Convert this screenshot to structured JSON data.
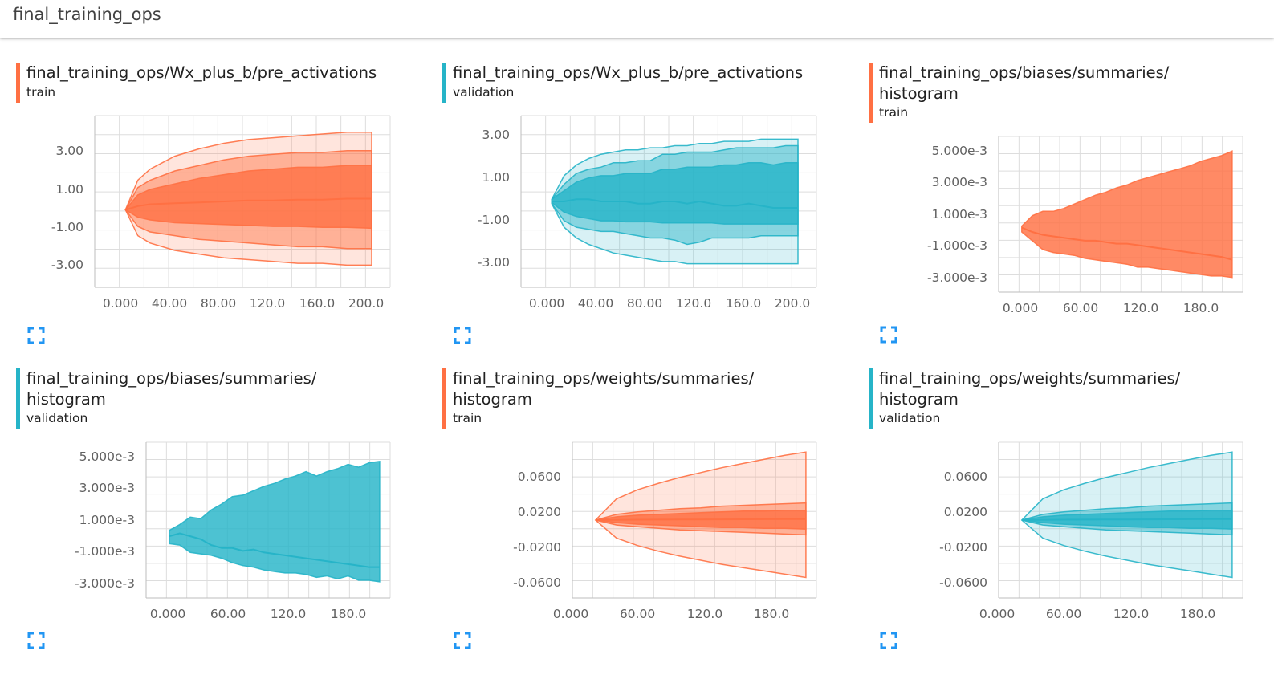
{
  "header": {
    "title": "final_training_ops"
  },
  "charts": [
    {
      "title": "final_training_ops/Wx_plus_b/pre_activations",
      "run": "train",
      "color": "#ff7043",
      "yticks": [
        "3.00",
        "1.00",
        "-1.00",
        "-3.00"
      ],
      "xticks": [
        "0.000",
        "40.00",
        "80.00",
        "120.0",
        "160.0",
        "200.0"
      ],
      "chart_data": {
        "type": "area",
        "description_kind": "histogram-distribution",
        "xlim": [
          -25,
          215
        ],
        "ylim": [
          -4.2,
          5.1
        ],
        "x": [
          0,
          10,
          20,
          40,
          60,
          80,
          100,
          120,
          140,
          160,
          180,
          200
        ],
        "bands": [
          {
            "upper": [
              0,
              1.6,
              2.2,
              2.9,
              3.3,
              3.6,
              3.8,
              3.9,
              4.0,
              4.1,
              4.2,
              4.2
            ],
            "lower": [
              0,
              -1.4,
              -1.8,
              -2.2,
              -2.4,
              -2.6,
              -2.7,
              -2.8,
              -2.9,
              -2.9,
              -3.0,
              -3.0
            ]
          },
          {
            "upper": [
              0,
              1.2,
              1.6,
              2.1,
              2.4,
              2.7,
              2.9,
              3.0,
              3.1,
              3.1,
              3.2,
              3.2
            ],
            "lower": [
              0,
              -0.9,
              -1.2,
              -1.4,
              -1.6,
              -1.7,
              -1.8,
              -1.9,
              -2.0,
              -2.0,
              -2.1,
              -2.1
            ]
          },
          {
            "upper": [
              0,
              0.8,
              1.1,
              1.4,
              1.7,
              1.9,
              2.1,
              2.2,
              2.3,
              2.3,
              2.4,
              2.4
            ],
            "lower": [
              0,
              -0.4,
              -0.55,
              -0.7,
              -0.75,
              -0.8,
              -0.85,
              -0.9,
              -0.9,
              -0.95,
              -0.95,
              -1.0
            ]
          }
        ],
        "median": [
          0,
          0.2,
          0.3,
          0.35,
          0.4,
          0.45,
          0.5,
          0.5,
          0.55,
          0.55,
          0.6,
          0.6
        ]
      }
    },
    {
      "title": "final_training_ops/Wx_plus_b/pre_activations",
      "run": "validation",
      "color": "#26b4c8",
      "yticks": [
        "3.00",
        "1.00",
        "-1.00",
        "-3.00"
      ],
      "xticks": [
        "0.000",
        "40.00",
        "80.00",
        "120.0",
        "160.0",
        "200.0"
      ],
      "chart_data": {
        "type": "area",
        "description_kind": "histogram-distribution",
        "xlim": [
          -25,
          215
        ],
        "ylim": [
          -4.0,
          4.0
        ],
        "x": [
          0,
          10,
          20,
          30,
          40,
          50,
          60,
          70,
          80,
          90,
          100,
          110,
          120,
          130,
          140,
          150,
          160,
          170,
          180,
          190,
          200
        ],
        "bands": [
          {
            "upper": [
              0.1,
              1.2,
              1.7,
              2.0,
              2.2,
              2.3,
              2.4,
              2.4,
              2.5,
              2.5,
              2.6,
              2.6,
              2.7,
              2.7,
              2.8,
              2.8,
              2.8,
              2.9,
              2.9,
              2.9,
              2.9
            ],
            "lower": [
              -0.1,
              -1.2,
              -1.7,
              -2.0,
              -2.2,
              -2.4,
              -2.5,
              -2.6,
              -2.7,
              -2.8,
              -2.8,
              -2.9,
              -2.9,
              -2.9,
              -2.9,
              -2.9,
              -2.9,
              -2.9,
              -2.9,
              -2.9,
              -2.9
            ]
          },
          {
            "upper": [
              0.1,
              0.8,
              1.3,
              1.5,
              1.6,
              1.8,
              1.8,
              1.9,
              1.9,
              2.2,
              2.2,
              2.3,
              2.3,
              2.3,
              2.4,
              2.5,
              2.5,
              2.5,
              2.5,
              2.6,
              2.6
            ],
            "lower": [
              -0.1,
              -0.9,
              -1.2,
              -1.3,
              -1.4,
              -1.4,
              -1.5,
              -1.6,
              -1.7,
              -1.7,
              -1.8,
              -2.0,
              -1.9,
              -1.7,
              -1.7,
              -1.7,
              -1.7,
              -1.6,
              -1.6,
              -1.6,
              -1.6
            ]
          },
          {
            "upper": [
              0.1,
              0.5,
              0.9,
              1.1,
              1.2,
              1.2,
              1.3,
              1.3,
              1.3,
              1.5,
              1.5,
              1.6,
              1.6,
              1.6,
              1.7,
              1.7,
              1.8,
              1.8,
              1.7,
              1.8,
              1.8
            ],
            "lower": [
              -0.05,
              -0.5,
              -0.7,
              -0.8,
              -0.9,
              -0.9,
              -0.95,
              -0.95,
              -0.95,
              -1.0,
              -1.0,
              -1.0,
              -1.0,
              -1.0,
              -1.05,
              -1.05,
              -1.05,
              -1.05,
              -1.05,
              -1.05,
              -1.05
            ]
          }
        ],
        "median": [
          0,
          0.0,
          0.1,
          0.1,
          0.0,
          0.0,
          0.0,
          -0.1,
          -0.1,
          0.0,
          0.0,
          -0.1,
          0.0,
          -0.1,
          -0.2,
          -0.2,
          -0.1,
          -0.2,
          -0.3,
          -0.3,
          -0.3
        ]
      }
    },
    {
      "title": "final_training_ops/biases/summaries/\nhistogram",
      "run": "train",
      "color": "#ff7043",
      "yticks": [
        "5.000e-3",
        "3.000e-3",
        "1.000e-3",
        "-1.000e-3",
        "-3.000e-3"
      ],
      "xticks": [
        "0.000",
        "60.00",
        "120.0",
        "180.0"
      ],
      "chart_data": {
        "type": "area",
        "description_kind": "histogram-distribution",
        "xlim": [
          -22,
          210
        ],
        "ylim": [
          -0.0043,
          0.0063
        ],
        "x": [
          0,
          10,
          20,
          30,
          40,
          50,
          60,
          70,
          80,
          90,
          100,
          110,
          120,
          130,
          140,
          150,
          160,
          170,
          180,
          190,
          200
        ],
        "bands": [
          {
            "upper": [
              0.0002,
              0.0009,
              0.0012,
              0.0012,
              0.0014,
              0.0017,
              0.002,
              0.0023,
              0.0025,
              0.0028,
              0.003,
              0.0033,
              0.0035,
              0.0037,
              0.0039,
              0.0041,
              0.0043,
              0.0046,
              0.0048,
              0.005,
              0.0053
            ],
            "lower": [
              -0.0002,
              -0.0008,
              -0.0014,
              -0.0016,
              -0.0017,
              -0.0018,
              -0.002,
              -0.0021,
              -0.0022,
              -0.0023,
              -0.0024,
              -0.0026,
              -0.0026,
              -0.0027,
              -0.0028,
              -0.0029,
              -0.003,
              -0.0031,
              -0.0032,
              -0.0032,
              -0.0033
            ]
          }
        ],
        "median": [
          0.0001,
          -0.0002,
          -0.0004,
          -0.0005,
          -0.0006,
          -0.0007,
          -0.0008,
          -0.0008,
          -0.0009,
          -0.001,
          -0.001,
          -0.0011,
          -0.0012,
          -0.0013,
          -0.0014,
          -0.0015,
          -0.0016,
          -0.0017,
          -0.0018,
          -0.0019,
          -0.0021
        ]
      }
    },
    {
      "title": "final_training_ops/biases/summaries/\nhistogram",
      "run": "validation",
      "color": "#26b4c8",
      "yticks": [
        "5.000e-3",
        "3.000e-3",
        "1.000e-3",
        "-1.000e-3",
        "-3.000e-3"
      ],
      "xticks": [
        "0.000",
        "60.00",
        "120.0",
        "180.0"
      ],
      "chart_data": {
        "type": "area",
        "description_kind": "histogram-distribution",
        "xlim": [
          -22,
          210
        ],
        "ylim": [
          -0.0043,
          0.0063
        ],
        "x": [
          0,
          10,
          20,
          30,
          40,
          50,
          60,
          70,
          80,
          90,
          100,
          110,
          120,
          130,
          140,
          150,
          160,
          170,
          180,
          190,
          200
        ],
        "bands": [
          {
            "upper": [
              0.0003,
              0.0007,
              0.0012,
              0.0011,
              0.0017,
              0.0021,
              0.0026,
              0.0027,
              0.003,
              0.0033,
              0.0035,
              0.0038,
              0.004,
              0.0043,
              0.004,
              0.0043,
              0.0045,
              0.0048,
              0.0046,
              0.0049,
              0.005
            ],
            "lower": [
              -0.0006,
              -0.0007,
              -0.0012,
              -0.0013,
              -0.0014,
              -0.0016,
              -0.0019,
              -0.0021,
              -0.0022,
              -0.0024,
              -0.0025,
              -0.0026,
              -0.0026,
              -0.0027,
              -0.0029,
              -0.0028,
              -0.003,
              -0.0028,
              -0.0031,
              -0.0031,
              -0.0032
            ]
          }
        ],
        "median": [
          -0.0001,
          0.0001,
          -0.0001,
          -0.0003,
          -0.0007,
          -0.0009,
          -0.0009,
          -0.0011,
          -0.001,
          -0.0012,
          -0.0013,
          -0.0014,
          -0.0015,
          -0.0016,
          -0.0017,
          -0.0018,
          -0.0019,
          -0.002,
          -0.0021,
          -0.0022,
          -0.0022
        ]
      }
    },
    {
      "title": "final_training_ops/weights/summaries/\nhistogram",
      "run": "train",
      "color": "#ff7043",
      "yticks": [
        "0.0600",
        "0.0200",
        "-0.0200",
        "-0.0600"
      ],
      "xticks": [
        "0.000",
        "60.00",
        "120.0",
        "180.0"
      ],
      "chart_data": {
        "type": "area",
        "description_kind": "histogram-distribution",
        "xlim": [
          -22,
          210
        ],
        "ylim": [
          -0.095,
          0.095
        ],
        "x": [
          0,
          20,
          40,
          60,
          80,
          100,
          120,
          140,
          160,
          180,
          200
        ],
        "bands": [
          {
            "upper": [
              0,
              0.026,
              0.037,
              0.045,
              0.052,
              0.058,
              0.064,
              0.069,
              0.074,
              0.079,
              0.083
            ],
            "lower": [
              0,
              -0.022,
              -0.031,
              -0.038,
              -0.044,
              -0.049,
              -0.054,
              -0.058,
              -0.062,
              -0.066,
              -0.07
            ]
          },
          {
            "upper": [
              0,
              0.007,
              0.01,
              0.012,
              0.014,
              0.015,
              0.017,
              0.018,
              0.019,
              0.02,
              0.021
            ],
            "lower": [
              0,
              -0.006,
              -0.008,
              -0.01,
              -0.012,
              -0.013,
              -0.014,
              -0.015,
              -0.016,
              -0.017,
              -0.018
            ]
          },
          {
            "upper": [
              0,
              0.004,
              0.006,
              0.007,
              0.008,
              0.009,
              0.01,
              0.011,
              0.011,
              0.012,
              0.012
            ],
            "lower": [
              0,
              -0.003,
              -0.005,
              -0.006,
              -0.007,
              -0.008,
              -0.009,
              -0.009,
              -0.01,
              -0.01,
              -0.011
            ]
          }
        ],
        "median": [
          0,
          0.0003,
          0.0005,
          0.0006,
          0.0007,
          0.0008,
          0.0009,
          0.001,
          0.0011,
          0.0012,
          0.0012
        ]
      }
    },
    {
      "title": "final_training_ops/weights/summaries/\nhistogram",
      "run": "validation",
      "color": "#26b4c8",
      "yticks": [
        "0.0600",
        "0.0200",
        "-0.0200",
        "-0.0600"
      ],
      "xticks": [
        "0.000",
        "60.00",
        "120.0",
        "180.0"
      ],
      "chart_data": {
        "type": "area",
        "description_kind": "histogram-distribution",
        "xlim": [
          -22,
          210
        ],
        "ylim": [
          -0.095,
          0.095
        ],
        "x": [
          0,
          20,
          40,
          60,
          80,
          100,
          120,
          140,
          160,
          180,
          200
        ],
        "bands": [
          {
            "upper": [
              0,
              0.026,
              0.037,
              0.045,
              0.052,
              0.058,
              0.064,
              0.069,
              0.074,
              0.079,
              0.083
            ],
            "lower": [
              0,
              -0.022,
              -0.031,
              -0.038,
              -0.044,
              -0.049,
              -0.054,
              -0.058,
              -0.062,
              -0.066,
              -0.07
            ]
          },
          {
            "upper": [
              0,
              0.007,
              0.01,
              0.012,
              0.014,
              0.015,
              0.017,
              0.018,
              0.019,
              0.02,
              0.021
            ],
            "lower": [
              0,
              -0.006,
              -0.008,
              -0.01,
              -0.012,
              -0.013,
              -0.014,
              -0.015,
              -0.016,
              -0.017,
              -0.018
            ]
          },
          {
            "upper": [
              0,
              0.004,
              0.006,
              0.007,
              0.008,
              0.009,
              0.01,
              0.011,
              0.011,
              0.012,
              0.012
            ],
            "lower": [
              0,
              -0.003,
              -0.005,
              -0.006,
              -0.007,
              -0.008,
              -0.009,
              -0.009,
              -0.01,
              -0.01,
              -0.011
            ]
          }
        ],
        "median": [
          0,
          0.0003,
          0.0005,
          0.0006,
          0.0007,
          0.0008,
          0.0009,
          0.001,
          0.0011,
          0.0012,
          0.0012
        ]
      }
    }
  ]
}
